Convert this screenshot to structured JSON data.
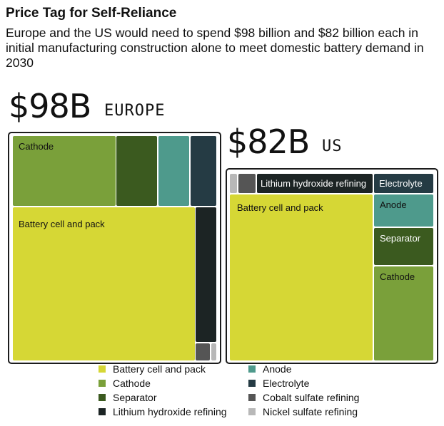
{
  "header": {
    "title": "Price Tag for Self-Reliance",
    "subtitle": "Europe and the US would need to spend $98 billion and $82 billion each in initial manufacturing construction alone to meet domestic battery demand in 2030"
  },
  "colors": {
    "Battery cell and pack": "#d6d735",
    "Cathode": "#7aa03a",
    "Separator": "#3b5a1f",
    "Lithium hydroxide refining": "#1c2424",
    "Anode": "#4e9a8c",
    "Electrolyte": "#253b44",
    "Cobalt sulfate refining": "#555555",
    "Nickel sulfate refining": "#b8b8b8"
  },
  "chart_data": [
    {
      "type": "treemap",
      "region_key": "europe",
      "total_label": "$98B",
      "region_label": "EUROPE",
      "total_billion": 98,
      "segments": [
        {
          "name": "Battery cell and pack",
          "label": "Battery cell and pack",
          "value": 58
        },
        {
          "name": "Cathode",
          "label": "Cathode",
          "value": 14
        },
        {
          "name": "Separator",
          "label": "",
          "value": 8
        },
        {
          "name": "Anode",
          "label": "",
          "value": 6
        },
        {
          "name": "Electrolyte",
          "label": "",
          "value": 5
        },
        {
          "name": "Lithium hydroxide refining",
          "label": "",
          "value": 5
        },
        {
          "name": "Cobalt sulfate refining",
          "label": "",
          "value": 1
        },
        {
          "name": "Nickel sulfate refining",
          "label": "",
          "value": 0.5
        }
      ]
    },
    {
      "type": "treemap",
      "region_key": "us",
      "total_label": "$82B",
      "region_label": "US",
      "total_billion": 82,
      "segments": [
        {
          "name": "Battery cell and pack",
          "label": "Battery cell and pack",
          "value": 52
        },
        {
          "name": "Lithium hydroxide refining",
          "label": "Lithium hydroxide refining",
          "value": 4
        },
        {
          "name": "Electrolyte",
          "label": "Electrolyte",
          "value": 2
        },
        {
          "name": "Anode",
          "label": "Anode",
          "value": 5
        },
        {
          "name": "Separator",
          "label": "Separator",
          "value": 5
        },
        {
          "name": "Cathode",
          "label": "Cathode",
          "value": 12
        },
        {
          "name": "Cobalt sulfate refining",
          "label": "",
          "value": 1
        },
        {
          "name": "Nickel sulfate refining",
          "label": "",
          "value": 0.5
        }
      ]
    }
  ],
  "legend": [
    "Battery cell and pack",
    "Cathode",
    "Separator",
    "Lithium hydroxide refining",
    "Anode",
    "Electrolyte",
    "Cobalt sulfate refining",
    "Nickel sulfate refining"
  ]
}
